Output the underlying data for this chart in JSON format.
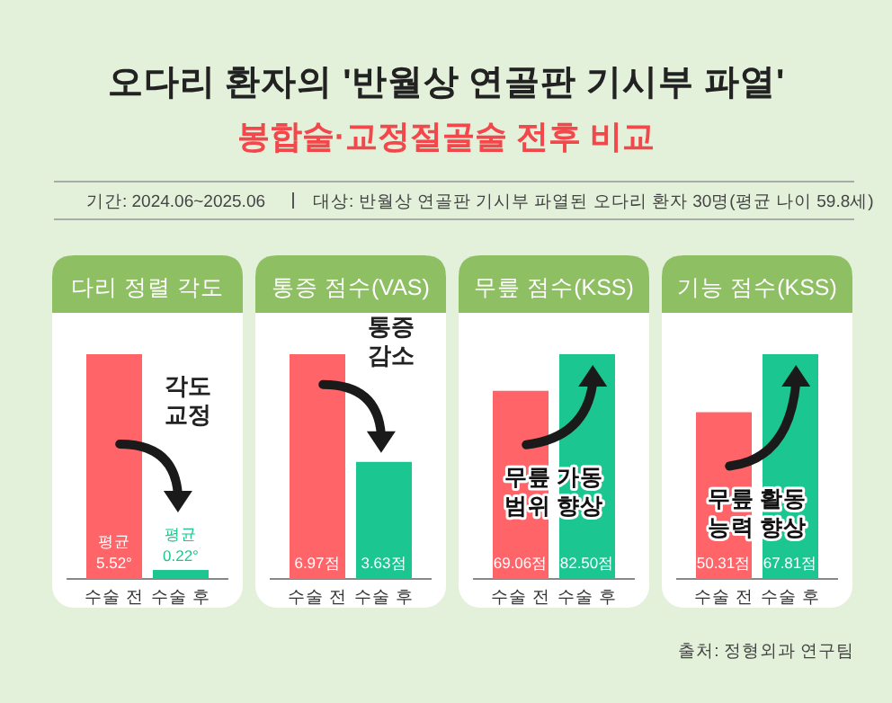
{
  "chart_data": [
    {
      "type": "other",
      "title": "오다리 환자의 '반월상 연골판 기시부 파열'",
      "subtitle": "봉합술·교정절골술 전후 비교",
      "annotations": [
        "기간: 2024.06~2025.06",
        "대상: 반월상 연골판 기시부 파열된 오다리 환자 30명(평균 나이 59.8세)",
        "출처: 정형외과 연구팀"
      ]
    },
    {
      "type": "bar",
      "title": "다리 정렬 각도",
      "categories": [
        "수술 전",
        "수술 후"
      ],
      "values": [
        5.52,
        0.22
      ],
      "colors": [
        "#ff6469",
        "#1cc690"
      ],
      "value_labels": [
        "평균\n5.52°",
        "평균\n0.22°"
      ],
      "annotations": [
        "각도\n교정"
      ]
    },
    {
      "type": "bar",
      "title": "통증 점수(VAS)",
      "categories": [
        "수술 전",
        "수술 후"
      ],
      "values": [
        6.97,
        3.63
      ],
      "colors": [
        "#ff6469",
        "#1cc690"
      ],
      "value_labels": [
        "6.97점",
        "3.63점"
      ],
      "annotations": [
        "통증\n감소"
      ]
    },
    {
      "type": "bar",
      "title": "무릎 점수(KSS)",
      "categories": [
        "수술 전",
        "수술 후"
      ],
      "values": [
        69.06,
        82.5
      ],
      "colors": [
        "#ff6469",
        "#1cc690"
      ],
      "value_labels": [
        "69.06점",
        "82.50점"
      ],
      "annotations": [
        "무릎 가동\n범위 향상"
      ]
    },
    {
      "type": "bar",
      "title": "기능 점수(KSS)",
      "categories": [
        "수술 전",
        "수술 후"
      ],
      "values": [
        50.31,
        67.81
      ],
      "colors": [
        "#ff6469",
        "#1cc690"
      ],
      "value_labels": [
        "50.31점",
        "67.81점"
      ],
      "annotations": [
        "무릎 활동\n능력 향상"
      ]
    }
  ]
}
